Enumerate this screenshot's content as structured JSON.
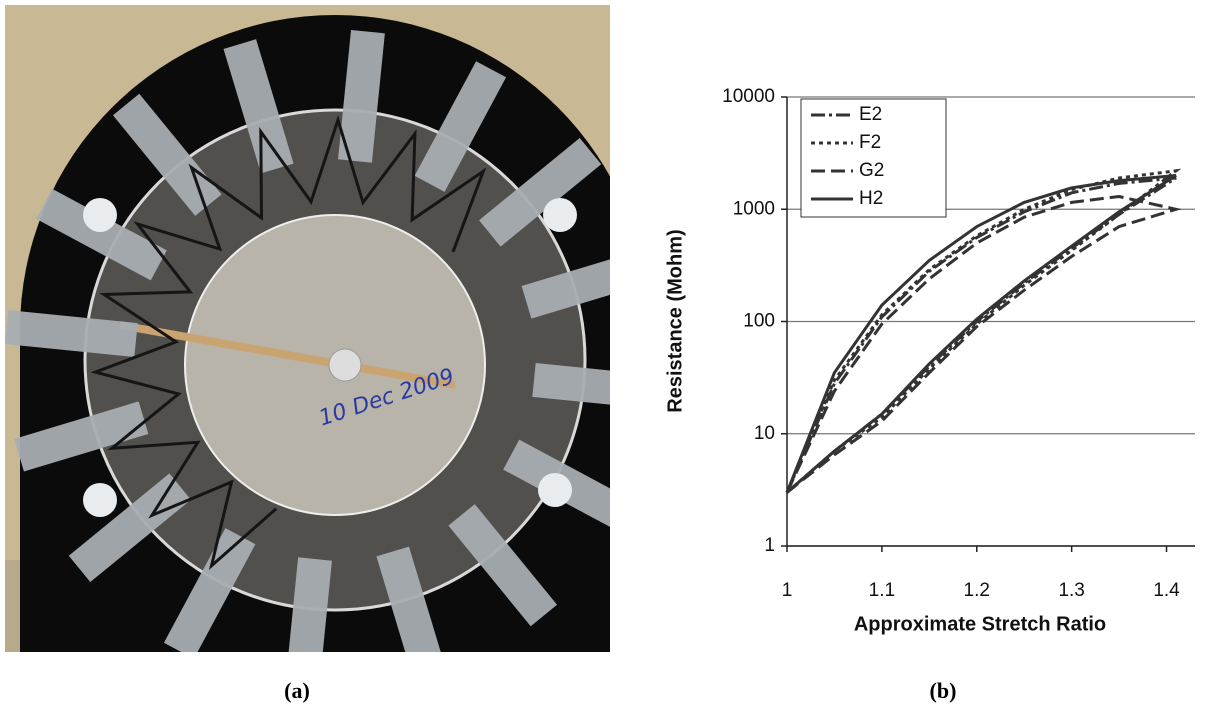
{
  "figure": {
    "panel_a": {
      "label": "(a)",
      "annotation": "10 Dec 2009"
    },
    "panel_b": {
      "label": "(b)"
    }
  },
  "chart_data": {
    "type": "line",
    "xlabel": "Approximate Stretch Ratio",
    "ylabel": "Resistance (Mohm)",
    "x": [
      1,
      1.05,
      1.1,
      1.15,
      1.2,
      1.25,
      1.3,
      1.35,
      1.41,
      1.35,
      1.3,
      1.25,
      1.2,
      1.15,
      1.1,
      1.05,
      1
    ],
    "series": [
      {
        "name": "E2",
        "color": "#333333",
        "style": "dashdot",
        "values": [
          3,
          7,
          15,
          40,
          100,
          220,
          450,
          900,
          1900,
          1700,
          1400,
          950,
          560,
          280,
          110,
          28,
          3
        ]
      },
      {
        "name": "F2",
        "color": "#333333",
        "style": "dotted",
        "values": [
          3,
          7,
          14,
          38,
          95,
          210,
          430,
          900,
          2200,
          1900,
          1500,
          1000,
          580,
          290,
          115,
          30,
          3
        ]
      },
      {
        "name": "G2",
        "color": "#333333",
        "style": "dashed",
        "values": [
          3,
          6.5,
          13,
          35,
          90,
          190,
          380,
          700,
          1000,
          1300,
          1150,
          850,
          500,
          240,
          95,
          24,
          3
        ]
      },
      {
        "name": "H2",
        "color": "#333333",
        "style": "solid",
        "values": [
          3,
          7,
          15,
          42,
          105,
          230,
          470,
          950,
          2000,
          1800,
          1550,
          1150,
          700,
          350,
          140,
          35,
          3
        ]
      }
    ],
    "xlim": [
      1,
      1.43
    ],
    "xticks": [
      1,
      1.1,
      1.2,
      1.3,
      1.4
    ],
    "ylim": [
      1,
      10000
    ],
    "yticks": [
      1,
      10,
      100,
      1000,
      10000
    ],
    "yscale": "log",
    "grid": "y",
    "legend": "upper left"
  }
}
